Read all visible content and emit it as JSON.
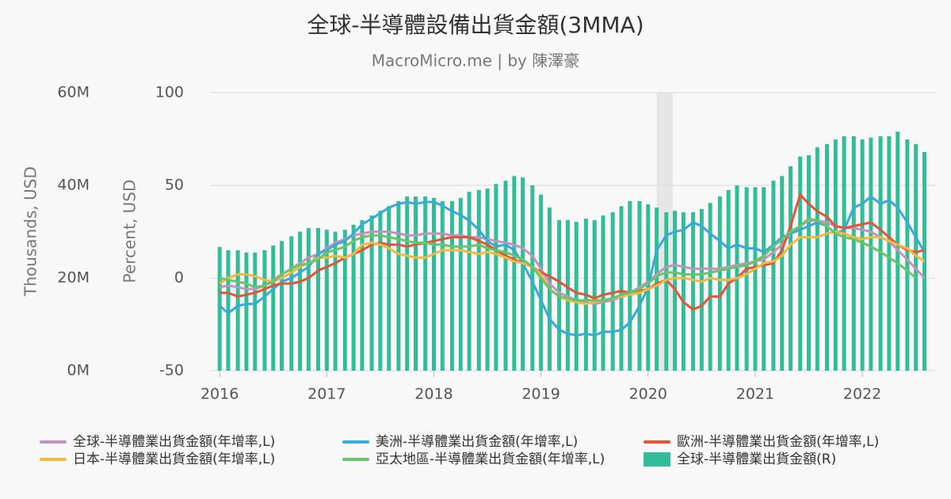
{
  "chart_data": {
    "type": "line",
    "title": "全球-半導體設備出貨金額(3MMA)",
    "subtitle": "MacroMicro.me | by 陳澤豪",
    "y_label": "Percent, USD",
    "y2_label": "Thousands, USD",
    "xlim": [
      2015.91,
      2022.68
    ],
    "xticks": [
      2016,
      2017,
      2018,
      2019,
      2020,
      2021,
      2022
    ],
    "ylim": [
      -50,
      100
    ],
    "yticks": [
      -50,
      0,
      50,
      100
    ],
    "y2lim": [
      0,
      60
    ],
    "y2ticks": [
      {
        "value": 0,
        "label": "0M"
      },
      {
        "value": 20,
        "label": "20M"
      },
      {
        "value": 40,
        "label": "40M"
      },
      {
        "value": 60,
        "label": "60M"
      }
    ],
    "grid": true,
    "shaded_x": [
      2020.08,
      2020.23
    ],
    "x": [
      2016,
      2016.08,
      2016.17,
      2016.25,
      2016.33,
      2016.42,
      2016.5,
      2016.58,
      2016.67,
      2016.75,
      2016.83,
      2016.92,
      2017,
      2017.08,
      2017.17,
      2017.25,
      2017.33,
      2017.42,
      2017.5,
      2017.58,
      2017.67,
      2017.75,
      2017.83,
      2017.92,
      2018,
      2018.08,
      2018.17,
      2018.25,
      2018.33,
      2018.42,
      2018.5,
      2018.58,
      2018.67,
      2018.75,
      2018.83,
      2018.92,
      2019,
      2019.08,
      2019.17,
      2019.25,
      2019.33,
      2019.42,
      2019.5,
      2019.58,
      2019.67,
      2019.75,
      2019.83,
      2019.92,
      2020,
      2020.08,
      2020.17,
      2020.25,
      2020.33,
      2020.42,
      2020.5,
      2020.58,
      2020.67,
      2020.75,
      2020.83,
      2020.92,
      2021,
      2021.08,
      2021.17,
      2021.25,
      2021.33,
      2021.42,
      2021.5,
      2021.58,
      2021.67,
      2021.75,
      2021.83,
      2021.92,
      2022,
      2022.08,
      2022.17,
      2022.25,
      2022.33,
      2022.42,
      2022.5,
      2022.58
    ],
    "series": [
      {
        "name": "全球-半導體業出貨金額(年增率,L)",
        "color": "#c393bd",
        "values": [
          -5,
          -4,
          -5,
          -6,
          -6,
          -4,
          -1,
          2,
          5,
          8,
          11,
          13,
          16,
          19,
          21,
          23,
          24,
          25,
          25,
          25,
          24,
          23,
          23,
          24,
          24,
          24,
          23,
          23,
          22,
          22,
          21,
          20,
          19,
          18,
          16,
          12,
          5,
          -3,
          -8,
          -10,
          -12,
          -13,
          -14,
          -13,
          -12,
          -10,
          -8,
          -5,
          -2,
          2,
          6,
          7,
          6,
          5,
          5,
          5,
          5,
          6,
          7,
          8,
          9,
          10,
          14,
          18,
          24,
          28,
          31,
          31,
          30,
          28,
          27,
          27,
          26,
          25,
          22,
          20,
          15,
          10,
          5,
          0
        ]
      },
      {
        "name": "美洲-半導體業出貨金額(年增率,L)",
        "color": "#3aa9d9",
        "values": [
          -15,
          -19,
          -15,
          -14,
          -14,
          -10,
          -6,
          -2,
          0,
          3,
          6,
          13,
          15,
          18,
          20,
          24,
          29,
          32,
          35,
          38,
          40,
          41,
          40,
          41,
          41,
          39,
          36,
          34,
          31,
          26,
          20,
          17,
          18,
          15,
          8,
          -2,
          -12,
          -22,
          -28,
          -30,
          -31,
          -30,
          -31,
          -29,
          -29,
          -28,
          -24,
          -15,
          -5,
          15,
          23,
          25,
          26,
          30,
          28,
          24,
          20,
          16,
          18,
          16,
          16,
          14,
          18,
          22,
          24,
          26,
          28,
          30,
          28,
          24,
          26,
          38,
          40,
          44,
          40,
          42,
          38,
          30,
          22,
          14
        ]
      },
      {
        "name": "歐洲-半導體業出貨金額(年增率,L)",
        "color": "#e4533a",
        "values": [
          -8,
          -8,
          -10,
          -9,
          -8,
          -6,
          -4,
          -3,
          -3,
          -2,
          0,
          4,
          6,
          8,
          11,
          13,
          15,
          18,
          19,
          18,
          18,
          17,
          18,
          19,
          20,
          21,
          22,
          22,
          22,
          20,
          18,
          15,
          12,
          10,
          8,
          6,
          3,
          1,
          -2,
          -5,
          -8,
          -9,
          -11,
          -9,
          -8,
          -7,
          -8,
          -7,
          -6,
          -3,
          -1,
          -6,
          -13,
          -17,
          -15,
          -10,
          -10,
          -3,
          0,
          5,
          6,
          7,
          8,
          15,
          28,
          45,
          40,
          36,
          33,
          28,
          27,
          28,
          29,
          30,
          26,
          22,
          18,
          15,
          14,
          15
        ]
      },
      {
        "name": "日本-半導體業出貨金額(年增率,L)",
        "color": "#f4b942",
        "values": [
          -3,
          0,
          2,
          2,
          1,
          -1,
          -2,
          0,
          3,
          6,
          8,
          11,
          11,
          12,
          11,
          13,
          18,
          19,
          18,
          16,
          13,
          12,
          11,
          11,
          13,
          15,
          15,
          15,
          14,
          13,
          14,
          13,
          11,
          9,
          8,
          6,
          2,
          -6,
          -10,
          -12,
          -13,
          -14,
          -13,
          -12,
          -11,
          -10,
          -9,
          -8,
          -6,
          -4,
          -1,
          0,
          0,
          -1,
          -2,
          0,
          -1,
          -1,
          0,
          2,
          5,
          8,
          9,
          12,
          18,
          22,
          22,
          22,
          24,
          25,
          24,
          22,
          21,
          22,
          22,
          20,
          18,
          16,
          12,
          9
        ]
      },
      {
        "name": "亞太地區-半導體業出貨金額(年增率,L)",
        "color": "#6cc46a",
        "values": [
          0,
          -1,
          -2,
          -3,
          -5,
          -4,
          -2,
          2,
          5,
          7,
          8,
          10,
          14,
          15,
          17,
          20,
          22,
          23,
          23,
          22,
          21,
          20,
          19,
          19,
          18,
          18,
          17,
          17,
          17,
          18,
          16,
          15,
          14,
          12,
          10,
          6,
          0,
          -6,
          -10,
          -11,
          -12,
          -12,
          -12,
          -12,
          -11,
          -9,
          -8,
          -6,
          -3,
          1,
          3,
          3,
          2,
          2,
          2,
          3,
          4,
          5,
          6,
          7,
          9,
          12,
          17,
          21,
          25,
          28,
          32,
          31,
          28,
          24,
          22,
          21,
          19,
          17,
          14,
          11,
          8,
          4,
          0,
          null
        ]
      },
      {
        "name": "全球-半導體業出貨金額(R)",
        "color": "#33bc98",
        "type": "bar",
        "axis": "y2",
        "values": [
          26.7,
          26,
          26,
          25.5,
          25.5,
          26,
          27,
          28,
          29,
          30,
          30.8,
          30.8,
          30.4,
          30,
          30.4,
          31.5,
          32.5,
          33.5,
          34.5,
          35.5,
          36.6,
          37.6,
          37.6,
          37.6,
          37.3,
          36.6,
          36.6,
          37.3,
          38.6,
          39,
          39.3,
          40.3,
          41,
          42,
          41.7,
          40,
          38,
          35.2,
          32.5,
          32.5,
          32.1,
          32.8,
          32.5,
          33.5,
          34.2,
          35.5,
          36.6,
          36.6,
          35.9,
          35.2,
          34.2,
          34.5,
          34.2,
          34.2,
          34.9,
          36.2,
          37.6,
          39,
          40,
          39.6,
          39.6,
          39.6,
          41,
          42,
          44.1,
          46.2,
          46.5,
          48.2,
          48.9,
          49.9,
          50.6,
          50.6,
          49.9,
          50.3,
          50.6,
          50.6,
          51.6,
          49.9,
          48.9,
          47.2
        ]
      }
    ]
  }
}
